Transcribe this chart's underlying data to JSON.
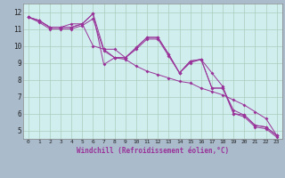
{
  "background_color": "#aabbcc",
  "plot_bg_color": "#d0eeee",
  "grid_color": "#aaccbb",
  "line_color": "#993399",
  "marker": "D",
  "marker_size": 2.0,
  "xlabel": "Windchill (Refroidissement éolien,°C)",
  "xlim": [
    -0.5,
    23.5
  ],
  "ylim": [
    4.5,
    12.5
  ],
  "yticks": [
    5,
    6,
    7,
    8,
    9,
    10,
    11,
    12
  ],
  "xticks": [
    0,
    1,
    2,
    3,
    4,
    5,
    6,
    7,
    8,
    9,
    10,
    11,
    12,
    13,
    14,
    15,
    16,
    17,
    18,
    19,
    20,
    21,
    22,
    23
  ],
  "series": [
    [
      11.7,
      11.5,
      11.1,
      11.1,
      11.1,
      11.3,
      11.9,
      8.9,
      9.3,
      9.3,
      9.9,
      10.5,
      10.5,
      9.5,
      8.4,
      9.1,
      9.2,
      8.4,
      7.6,
      6.0,
      5.9,
      5.3,
      5.2,
      4.7
    ],
    [
      11.7,
      11.5,
      11.1,
      11.1,
      11.1,
      11.3,
      11.9,
      9.8,
      9.8,
      9.3,
      9.9,
      10.5,
      10.5,
      9.5,
      8.4,
      9.1,
      9.2,
      7.5,
      7.5,
      6.2,
      5.9,
      5.3,
      5.2,
      4.7
    ],
    [
      11.7,
      11.5,
      11.1,
      11.1,
      11.3,
      11.3,
      10.0,
      9.8,
      9.3,
      9.2,
      8.8,
      8.5,
      8.3,
      8.1,
      7.9,
      7.8,
      7.5,
      7.3,
      7.1,
      6.8,
      6.5,
      6.1,
      5.7,
      4.7
    ],
    [
      11.7,
      11.4,
      11.0,
      11.0,
      11.0,
      11.2,
      11.6,
      9.7,
      9.3,
      9.3,
      9.8,
      10.4,
      10.4,
      9.4,
      8.4,
      9.0,
      9.2,
      7.5,
      7.5,
      6.0,
      5.8,
      5.2,
      5.1,
      4.6
    ]
  ]
}
